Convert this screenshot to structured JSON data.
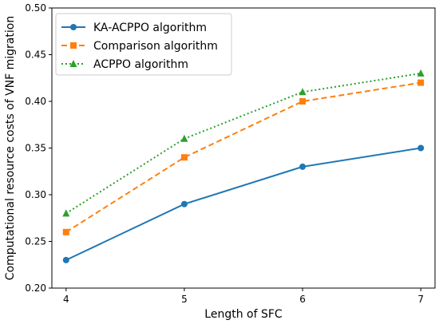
{
  "chart_data": {
    "type": "line",
    "title": "",
    "xlabel": "Length of SFC",
    "ylabel": "Computational resource costs of VNF migration",
    "x": [
      4,
      5,
      6,
      7
    ],
    "xticks": [
      "4",
      "5",
      "6",
      "7"
    ],
    "yticks": [
      "0.20",
      "0.25",
      "0.30",
      "0.35",
      "0.40",
      "0.45",
      "0.50"
    ],
    "ylim": [
      0.2,
      0.5
    ],
    "grid": false,
    "legend_position": "top-left",
    "series": [
      {
        "name": "KA-ACPPO algorithm",
        "values": [
          0.23,
          0.29,
          0.33,
          0.35
        ],
        "color": "#1f77b4",
        "line_style": "solid",
        "marker": "circle"
      },
      {
        "name": "Comparison algorithm",
        "values": [
          0.26,
          0.34,
          0.4,
          0.42
        ],
        "color": "#ff7f0e",
        "line_style": "dashed",
        "marker": "square"
      },
      {
        "name": "ACPPO algorithm",
        "values": [
          0.28,
          0.36,
          0.41,
          0.43
        ],
        "color": "#2ca02c",
        "line_style": "dotted",
        "marker": "triangle"
      }
    ]
  }
}
